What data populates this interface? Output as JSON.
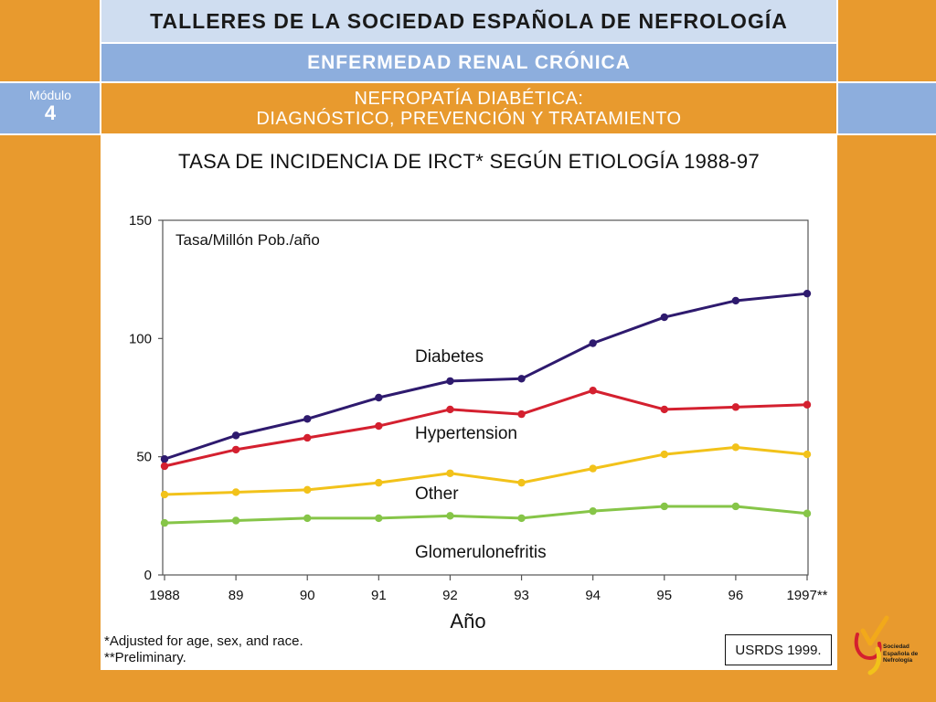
{
  "header": {
    "title": "TALLERES DE LA SOCIEDAD ESPAÑOLA DE NEFROLOGÍA",
    "subtitle": "ENFERMEDAD RENAL CRÓNICA",
    "topic_line1": "NEFROPATÍA DIABÉTICA:",
    "topic_line2": "DIAGNÓSTICO, PREVENCIÓN  Y TRATAMIENTO",
    "module_label": "Módulo",
    "module_number": "4"
  },
  "chart_data": {
    "type": "line",
    "title": "TASA DE INCIDENCIA DE IRCT* SEGÚN ETIOLOGÍA 1988-97",
    "ylabel": "Tasa/Millón Pob./año",
    "xlabel": "Año",
    "categories": [
      "1988",
      "89",
      "90",
      "91",
      "92",
      "93",
      "94",
      "95",
      "96",
      "1997**"
    ],
    "ylim": [
      0,
      150
    ],
    "yticks": [
      0,
      50,
      100,
      150
    ],
    "series": [
      {
        "name": "Diabetes",
        "color": "#2E1A6E",
        "values": [
          49,
          59,
          66,
          75,
          82,
          83,
          98,
          109,
          116,
          119
        ]
      },
      {
        "name": "Hypertension",
        "color": "#D4202F",
        "values": [
          46,
          53,
          58,
          63,
          70,
          68,
          78,
          70,
          71,
          72
        ]
      },
      {
        "name": "Other",
        "color": "#F2C21A",
        "values": [
          34,
          35,
          36,
          39,
          43,
          39,
          45,
          51,
          54,
          51
        ]
      },
      {
        "name": "Glomerulonefritis",
        "color": "#86C548",
        "values": [
          22,
          23,
          24,
          24,
          25,
          24,
          27,
          29,
          29,
          26
        ]
      }
    ]
  },
  "footnotes": {
    "note1": "*Adjusted for age, sex, and race.",
    "note2": "**Preliminary."
  },
  "source": "USRDS  1999.",
  "logo": {
    "text": "Sociedad Española de Nefrología"
  }
}
